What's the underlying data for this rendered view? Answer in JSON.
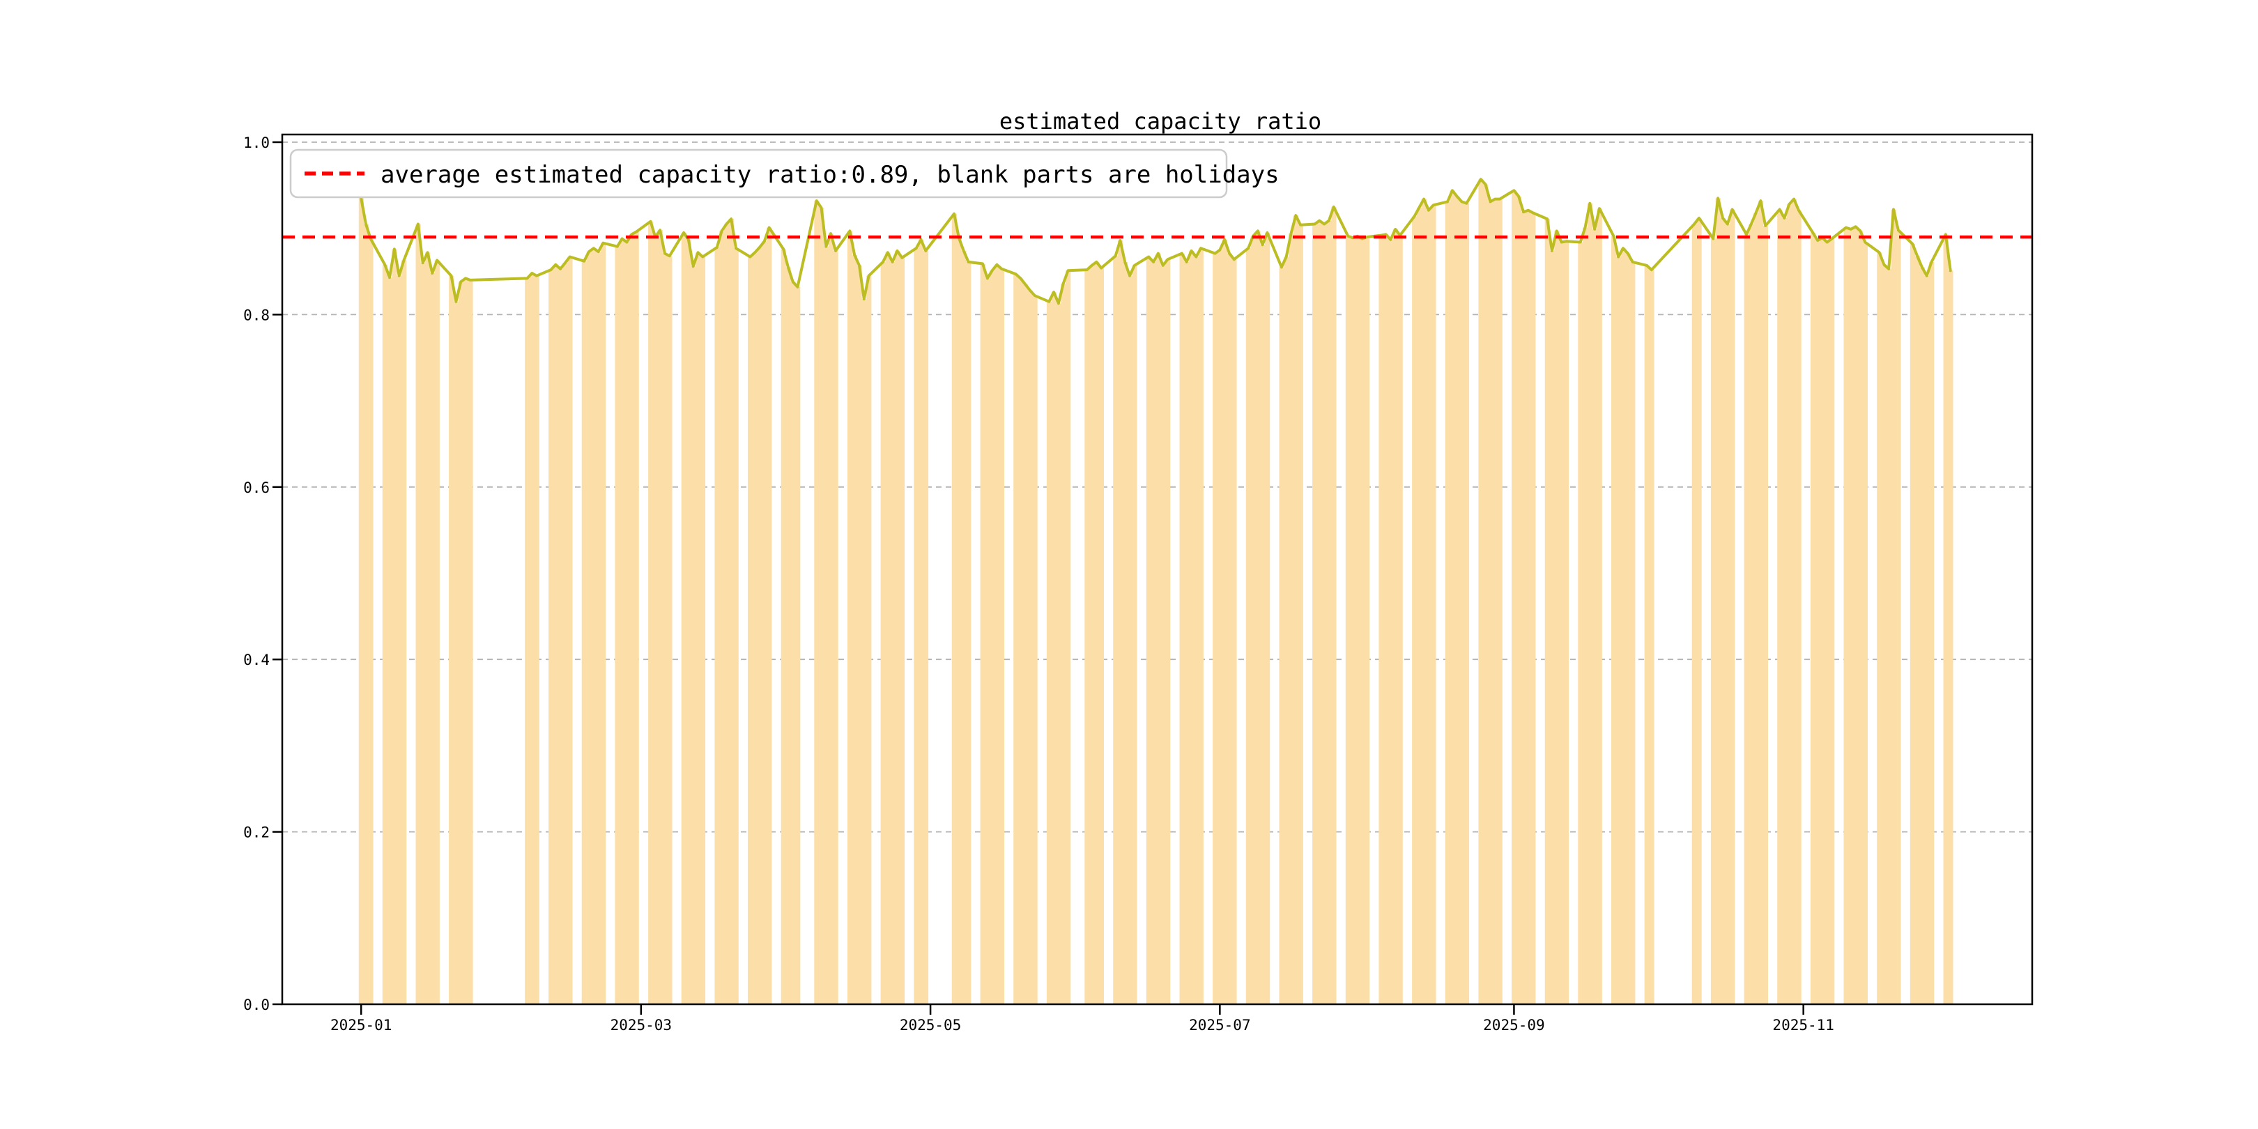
{
  "figure": {
    "title": "estimated capacity ratio"
  },
  "legend": {
    "label": "average estimated capacity ratio:0.89, blank parts are holidays"
  },
  "colors": {
    "bar": "#fcdfa8",
    "line": "#bcbd22",
    "average_line": "#ff0000",
    "grid": "#b3b3b3",
    "spine": "#000000",
    "legend_border": "#cccccc",
    "background": "#ffffff"
  },
  "chart_data": {
    "type": "bar",
    "title": "estimated capacity ratio",
    "average": 0.89,
    "average_label": "average estimated capacity ratio:0.89, blank parts are holidays",
    "note": "blank parts are holidays",
    "ylim": [
      0.0,
      1.009
    ],
    "yticks": [
      0.0,
      0.2,
      0.4,
      0.6,
      0.8,
      1.0
    ],
    "ytick_labels": [
      "0.0",
      "0.2",
      "0.4",
      "0.6",
      "0.8",
      "1.0"
    ],
    "xticks": [
      {
        "date": "2025-01-01",
        "label": "2025-01"
      },
      {
        "date": "2025-03-01",
        "label": "2025-03"
      },
      {
        "date": "2025-05-01",
        "label": "2025-05"
      },
      {
        "date": "2025-07-01",
        "label": "2025-07"
      },
      {
        "date": "2025-09-01",
        "label": "2025-09"
      },
      {
        "date": "2025-11-01",
        "label": "2025-11"
      }
    ],
    "x_start_date": "2025-01-01",
    "x_end_date": "2025-12-02",
    "grid": true,
    "legend_position": "upper left",
    "points": [
      [
        "2025-01-01",
        0.935
      ],
      [
        "2025-01-02",
        0.905
      ],
      [
        "2025-01-03",
        0.888
      ],
      [
        "2025-01-06",
        0.858
      ],
      [
        "2025-01-07",
        0.843
      ],
      [
        "2025-01-08",
        0.876
      ],
      [
        "2025-01-09",
        0.845
      ],
      [
        "2025-01-10",
        0.863
      ],
      [
        "2025-01-13",
        0.905
      ],
      [
        "2025-01-14",
        0.86
      ],
      [
        "2025-01-15",
        0.872
      ],
      [
        "2025-01-16",
        0.848
      ],
      [
        "2025-01-17",
        0.863
      ],
      [
        "2025-01-20",
        0.845
      ],
      [
        "2025-01-21",
        0.815
      ],
      [
        "2025-01-22",
        0.838
      ],
      [
        "2025-01-23",
        0.842
      ],
      [
        "2025-01-24",
        0.84
      ],
      [
        "2025-02-05",
        0.842
      ],
      [
        "2025-02-06",
        0.848
      ],
      [
        "2025-02-07",
        0.845
      ],
      [
        "2025-02-10",
        0.852
      ],
      [
        "2025-02-11",
        0.858
      ],
      [
        "2025-02-12",
        0.853
      ],
      [
        "2025-02-13",
        0.86
      ],
      [
        "2025-02-14",
        0.867
      ],
      [
        "2025-02-17",
        0.862
      ],
      [
        "2025-02-18",
        0.873
      ],
      [
        "2025-02-19",
        0.877
      ],
      [
        "2025-02-20",
        0.873
      ],
      [
        "2025-02-21",
        0.883
      ],
      [
        "2025-02-24",
        0.879
      ],
      [
        "2025-02-25",
        0.888
      ],
      [
        "2025-02-26",
        0.884
      ],
      [
        "2025-02-27",
        0.893
      ],
      [
        "2025-02-28",
        0.896
      ],
      [
        "2025-03-03",
        0.908
      ],
      [
        "2025-03-04",
        0.89
      ],
      [
        "2025-03-05",
        0.898
      ],
      [
        "2025-03-06",
        0.871
      ],
      [
        "2025-03-07",
        0.868
      ],
      [
        "2025-03-10",
        0.895
      ],
      [
        "2025-03-11",
        0.887
      ],
      [
        "2025-03-12",
        0.856
      ],
      [
        "2025-03-13",
        0.872
      ],
      [
        "2025-03-14",
        0.867
      ],
      [
        "2025-03-17",
        0.878
      ],
      [
        "2025-03-18",
        0.897
      ],
      [
        "2025-03-19",
        0.905
      ],
      [
        "2025-03-20",
        0.911
      ],
      [
        "2025-03-21",
        0.877
      ],
      [
        "2025-03-24",
        0.867
      ],
      [
        "2025-03-25",
        0.872
      ],
      [
        "2025-03-26",
        0.878
      ],
      [
        "2025-03-27",
        0.885
      ],
      [
        "2025-03-28",
        0.901
      ],
      [
        "2025-03-31",
        0.876
      ],
      [
        "2025-04-01",
        0.855
      ],
      [
        "2025-04-02",
        0.838
      ],
      [
        "2025-04-03",
        0.832
      ],
      [
        "2025-04-07",
        0.932
      ],
      [
        "2025-04-08",
        0.924
      ],
      [
        "2025-04-09",
        0.879
      ],
      [
        "2025-04-10",
        0.894
      ],
      [
        "2025-04-11",
        0.874
      ],
      [
        "2025-04-14",
        0.897
      ],
      [
        "2025-04-15",
        0.869
      ],
      [
        "2025-04-16",
        0.857
      ],
      [
        "2025-04-17",
        0.818
      ],
      [
        "2025-04-18",
        0.845
      ],
      [
        "2025-04-21",
        0.861
      ],
      [
        "2025-04-22",
        0.872
      ],
      [
        "2025-04-23",
        0.861
      ],
      [
        "2025-04-24",
        0.874
      ],
      [
        "2025-04-25",
        0.866
      ],
      [
        "2025-04-28",
        0.877
      ],
      [
        "2025-04-29",
        0.887
      ],
      [
        "2025-04-30",
        0.874
      ],
      [
        "2025-05-06",
        0.917
      ],
      [
        "2025-05-07",
        0.889
      ],
      [
        "2025-05-08",
        0.874
      ],
      [
        "2025-05-09",
        0.861
      ],
      [
        "2025-05-12",
        0.859
      ],
      [
        "2025-05-13",
        0.842
      ],
      [
        "2025-05-14",
        0.851
      ],
      [
        "2025-05-15",
        0.858
      ],
      [
        "2025-05-16",
        0.853
      ],
      [
        "2025-05-19",
        0.847
      ],
      [
        "2025-05-20",
        0.842
      ],
      [
        "2025-05-21",
        0.835
      ],
      [
        "2025-05-22",
        0.828
      ],
      [
        "2025-05-23",
        0.822
      ],
      [
        "2025-05-26",
        0.815
      ],
      [
        "2025-05-27",
        0.826
      ],
      [
        "2025-05-28",
        0.813
      ],
      [
        "2025-05-29",
        0.836
      ],
      [
        "2025-05-30",
        0.851
      ],
      [
        "2025-06-03",
        0.852
      ],
      [
        "2025-06-04",
        0.857
      ],
      [
        "2025-06-05",
        0.861
      ],
      [
        "2025-06-06",
        0.854
      ],
      [
        "2025-06-09",
        0.868
      ],
      [
        "2025-06-10",
        0.886
      ],
      [
        "2025-06-11",
        0.861
      ],
      [
        "2025-06-12",
        0.845
      ],
      [
        "2025-06-13",
        0.857
      ],
      [
        "2025-06-16",
        0.867
      ],
      [
        "2025-06-17",
        0.861
      ],
      [
        "2025-06-18",
        0.871
      ],
      [
        "2025-06-19",
        0.857
      ],
      [
        "2025-06-20",
        0.864
      ],
      [
        "2025-06-23",
        0.871
      ],
      [
        "2025-06-24",
        0.861
      ],
      [
        "2025-06-25",
        0.874
      ],
      [
        "2025-06-26",
        0.867
      ],
      [
        "2025-06-27",
        0.877
      ],
      [
        "2025-06-30",
        0.871
      ],
      [
        "2025-07-01",
        0.875
      ],
      [
        "2025-07-02",
        0.887
      ],
      [
        "2025-07-03",
        0.871
      ],
      [
        "2025-07-04",
        0.864
      ],
      [
        "2025-07-07",
        0.877
      ],
      [
        "2025-07-08",
        0.891
      ],
      [
        "2025-07-09",
        0.897
      ],
      [
        "2025-07-10",
        0.881
      ],
      [
        "2025-07-11",
        0.895
      ],
      [
        "2025-07-14",
        0.855
      ],
      [
        "2025-07-15",
        0.867
      ],
      [
        "2025-07-16",
        0.894
      ],
      [
        "2025-07-17",
        0.915
      ],
      [
        "2025-07-18",
        0.904
      ],
      [
        "2025-07-21",
        0.905
      ],
      [
        "2025-07-22",
        0.909
      ],
      [
        "2025-07-23",
        0.905
      ],
      [
        "2025-07-24",
        0.909
      ],
      [
        "2025-07-25",
        0.925
      ],
      [
        "2025-07-28",
        0.891
      ],
      [
        "2025-07-29",
        0.889
      ],
      [
        "2025-07-30",
        0.891
      ],
      [
        "2025-07-31",
        0.888
      ],
      [
        "2025-08-01",
        0.89
      ],
      [
        "2025-08-04",
        0.892
      ],
      [
        "2025-08-05",
        0.893
      ],
      [
        "2025-08-06",
        0.887
      ],
      [
        "2025-08-07",
        0.899
      ],
      [
        "2025-08-08",
        0.892
      ],
      [
        "2025-08-11",
        0.914
      ],
      [
        "2025-08-12",
        0.924
      ],
      [
        "2025-08-13",
        0.934
      ],
      [
        "2025-08-14",
        0.921
      ],
      [
        "2025-08-15",
        0.927
      ],
      [
        "2025-08-18",
        0.931
      ],
      [
        "2025-08-19",
        0.944
      ],
      [
        "2025-08-20",
        0.937
      ],
      [
        "2025-08-21",
        0.931
      ],
      [
        "2025-08-22",
        0.929
      ],
      [
        "2025-08-25",
        0.957
      ],
      [
        "2025-08-26",
        0.951
      ],
      [
        "2025-08-27",
        0.931
      ],
      [
        "2025-08-28",
        0.934
      ],
      [
        "2025-08-29",
        0.934
      ],
      [
        "2025-09-01",
        0.944
      ],
      [
        "2025-09-02",
        0.937
      ],
      [
        "2025-09-03",
        0.919
      ],
      [
        "2025-09-04",
        0.921
      ],
      [
        "2025-09-05",
        0.918
      ],
      [
        "2025-09-08",
        0.911
      ],
      [
        "2025-09-09",
        0.874
      ],
      [
        "2025-09-10",
        0.897
      ],
      [
        "2025-09-11",
        0.884
      ],
      [
        "2025-09-12",
        0.885
      ],
      [
        "2025-09-15",
        0.884
      ],
      [
        "2025-09-16",
        0.901
      ],
      [
        "2025-09-17",
        0.929
      ],
      [
        "2025-09-18",
        0.899
      ],
      [
        "2025-09-19",
        0.923
      ],
      [
        "2025-09-22",
        0.891
      ],
      [
        "2025-09-23",
        0.867
      ],
      [
        "2025-09-24",
        0.877
      ],
      [
        "2025-09-25",
        0.871
      ],
      [
        "2025-09-26",
        0.861
      ],
      [
        "2025-09-29",
        0.857
      ],
      [
        "2025-09-30",
        0.852
      ],
      [
        "2025-10-09",
        0.905
      ],
      [
        "2025-10-10",
        0.912
      ],
      [
        "2025-10-13",
        0.888
      ],
      [
        "2025-10-14",
        0.935
      ],
      [
        "2025-10-15",
        0.912
      ],
      [
        "2025-10-16",
        0.905
      ],
      [
        "2025-10-17",
        0.922
      ],
      [
        "2025-10-20",
        0.893
      ],
      [
        "2025-10-21",
        0.905
      ],
      [
        "2025-10-22",
        0.918
      ],
      [
        "2025-10-23",
        0.932
      ],
      [
        "2025-10-24",
        0.903
      ],
      [
        "2025-10-27",
        0.922
      ],
      [
        "2025-10-28",
        0.912
      ],
      [
        "2025-10-29",
        0.928
      ],
      [
        "2025-10-30",
        0.934
      ],
      [
        "2025-10-31",
        0.921
      ],
      [
        "2025-11-03",
        0.895
      ],
      [
        "2025-11-04",
        0.886
      ],
      [
        "2025-11-05",
        0.889
      ],
      [
        "2025-11-06",
        0.884
      ],
      [
        "2025-11-07",
        0.888
      ],
      [
        "2025-11-10",
        0.901
      ],
      [
        "2025-11-11",
        0.899
      ],
      [
        "2025-11-12",
        0.902
      ],
      [
        "2025-11-13",
        0.897
      ],
      [
        "2025-11-14",
        0.884
      ],
      [
        "2025-11-17",
        0.872
      ],
      [
        "2025-11-18",
        0.858
      ],
      [
        "2025-11-19",
        0.853
      ],
      [
        "2025-11-20",
        0.922
      ],
      [
        "2025-11-21",
        0.898
      ],
      [
        "2025-11-24",
        0.882
      ],
      [
        "2025-11-25",
        0.868
      ],
      [
        "2025-11-26",
        0.855
      ],
      [
        "2025-11-27",
        0.845
      ],
      [
        "2025-11-28",
        0.861
      ],
      [
        "2025-12-01",
        0.893
      ],
      [
        "2025-12-02",
        0.851
      ]
    ]
  }
}
